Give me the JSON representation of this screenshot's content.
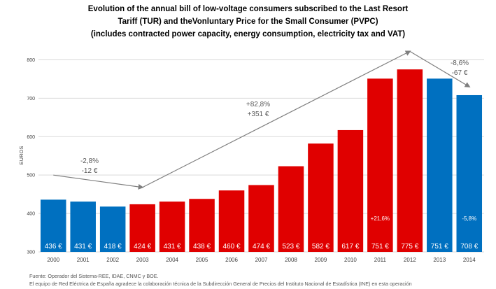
{
  "title_lines": [
    "Evolution of the annual bill of low-voltage consumers subscribed to the Last Resort",
    "Tariff (TUR) and theVonluntary Price for the Small Consumer (PVPC)",
    "(includes contracted power capacity, energy consumption, electricity tax and VAT)"
  ],
  "sources": [
    "Fuente: Operador del Sistema-REE, IDAE, CNMC y BOE.",
    "El equipo de Red Eléctrica de España agradece la colaboración técnica de la Subdirección General de Precios del Instituto Nacional de Estadística (INE) en esta operación"
  ],
  "colors": {
    "blue": "#0070c0",
    "red": "#e00000",
    "grid": "#d9d9d9",
    "arrow": "#7f7f7f"
  },
  "chart_data": {
    "type": "bar",
    "ylabel": "EUROS",
    "ylim": [
      300,
      850
    ],
    "yticks": [
      300,
      400,
      500,
      600,
      700,
      800
    ],
    "grid": true,
    "categories": [
      "2000",
      "2001",
      "2002",
      "2003",
      "2004",
      "2005",
      "2006",
      "2007",
      "2008",
      "2009",
      "2010",
      "2011",
      "2012",
      "2013",
      "2014"
    ],
    "values": [
      436,
      431,
      418,
      424,
      431,
      438,
      460,
      474,
      523,
      582,
      617,
      751,
      775,
      751,
      708
    ],
    "value_labels": [
      "436 €",
      "431 €",
      "418 €",
      "424 €",
      "431 €",
      "438 €",
      "460 €",
      "474 €",
      "523 €",
      "582 €",
      "617 €",
      "751 €",
      "775 €",
      "751 €",
      "708 €"
    ],
    "bar_colors": [
      "blue",
      "blue",
      "blue",
      "red",
      "red",
      "red",
      "red",
      "red",
      "red",
      "red",
      "red",
      "red",
      "red",
      "blue",
      "blue"
    ],
    "inner_labels": [
      {
        "category": "2011",
        "text": "+21,6%"
      },
      {
        "category": "2014",
        "text": "-5,8%"
      }
    ],
    "annotations": [
      {
        "lines": [
          "-2,8%",
          "-12 €"
        ],
        "from": [
          "2000",
          500
        ],
        "to": [
          "2003",
          468
        ]
      },
      {
        "lines": [
          "+82,8%",
          "+351 €"
        ],
        "from": [
          "2003",
          468
        ],
        "to": [
          "2012",
          822
        ]
      },
      {
        "lines": [
          "-8,6%",
          "-67 €"
        ],
        "from": [
          "2012",
          822
        ],
        "to": [
          "2014",
          730
        ]
      }
    ]
  }
}
